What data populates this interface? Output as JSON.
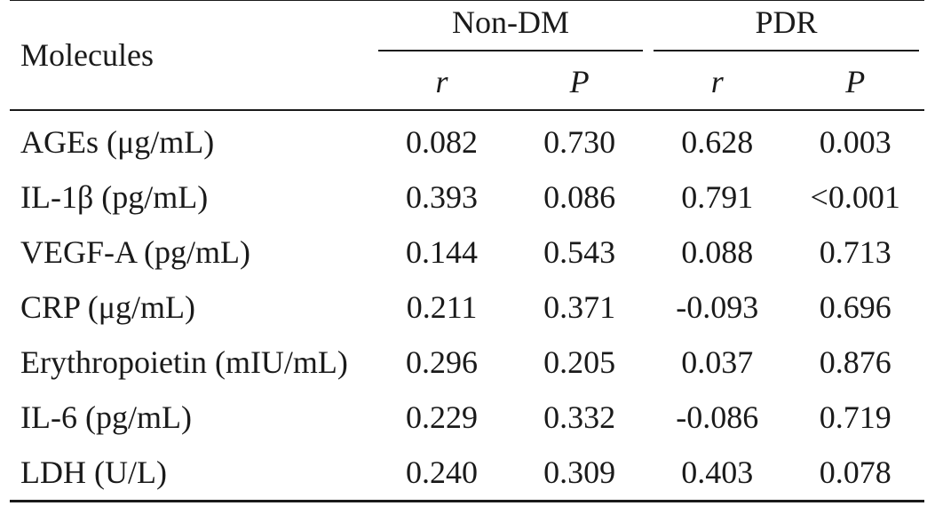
{
  "table": {
    "header": {
      "row_label": "Molecules",
      "groups": [
        "Non-DM",
        "PDR"
      ],
      "subcolumns": [
        "r",
        "P",
        "r",
        "P"
      ]
    },
    "rows": [
      {
        "molecule": "AGEs (μg/mL)",
        "values": [
          "0.082",
          "0.730",
          "0.628",
          "0.003"
        ]
      },
      {
        "molecule": "IL-1β (pg/mL)",
        "values": [
          "0.393",
          "0.086",
          "0.791",
          "<0.001"
        ]
      },
      {
        "molecule": "VEGF-A (pg/mL)",
        "values": [
          "0.144",
          "0.543",
          "0.088",
          "0.713"
        ]
      },
      {
        "molecule": "CRP (μg/mL)",
        "values": [
          "0.211",
          "0.371",
          "-0.093",
          "0.696"
        ]
      },
      {
        "molecule": "Erythropoietin (mIU/mL)",
        "values": [
          "0.296",
          "0.205",
          "0.037",
          "0.876"
        ]
      },
      {
        "molecule": "IL-6 (pg/mL)",
        "values": [
          "0.229",
          "0.332",
          "-0.086",
          "0.719"
        ]
      },
      {
        "molecule": "LDH (U/L)",
        "values": [
          "0.240",
          "0.309",
          "0.403",
          "0.078"
        ]
      }
    ]
  }
}
